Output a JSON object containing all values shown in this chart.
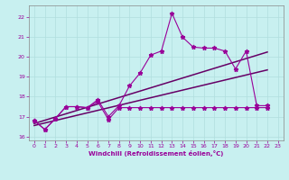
{
  "xlabel": "Windchill (Refroidissement éolien,°C)",
  "background_color": "#c8f0f0",
  "grid_color": "#b0dede",
  "line_color": "#990099",
  "line_color2": "#660066",
  "xlim": [
    -0.5,
    23.5
  ],
  "ylim": [
    15.8,
    22.6
  ],
  "yticks": [
    16,
    17,
    18,
    19,
    20,
    21,
    22
  ],
  "xticks": [
    0,
    1,
    2,
    3,
    4,
    5,
    6,
    7,
    8,
    9,
    10,
    11,
    12,
    13,
    14,
    15,
    16,
    17,
    18,
    19,
    20,
    21,
    22,
    23
  ],
  "line1_x": [
    0,
    1,
    2,
    3,
    4,
    5,
    6,
    7,
    8,
    9,
    10,
    11,
    12,
    13,
    14,
    15,
    16,
    17,
    18,
    19,
    20,
    21,
    22
  ],
  "line1_y": [
    16.8,
    16.35,
    16.9,
    17.5,
    17.5,
    17.45,
    17.85,
    17.0,
    17.55,
    18.55,
    19.2,
    20.1,
    20.3,
    22.2,
    21.0,
    20.5,
    20.45,
    20.45,
    20.3,
    19.4,
    20.3,
    17.55,
    17.55
  ],
  "line2_x": [
    0,
    1,
    2,
    3,
    4,
    5,
    6,
    7,
    8,
    9,
    10,
    11,
    12,
    13,
    14,
    15,
    16,
    17,
    18,
    19,
    20,
    21,
    22
  ],
  "line2_y": [
    16.8,
    16.35,
    16.9,
    17.5,
    17.5,
    17.45,
    17.75,
    16.85,
    17.45,
    17.45,
    17.45,
    17.45,
    17.45,
    17.45,
    17.45,
    17.45,
    17.45,
    17.45,
    17.45,
    17.45,
    17.45,
    17.45,
    17.45
  ],
  "line3_x": [
    0,
    22
  ],
  "line3_y": [
    16.65,
    20.25
  ],
  "line4_x": [
    0,
    22
  ],
  "line4_y": [
    16.55,
    19.35
  ]
}
